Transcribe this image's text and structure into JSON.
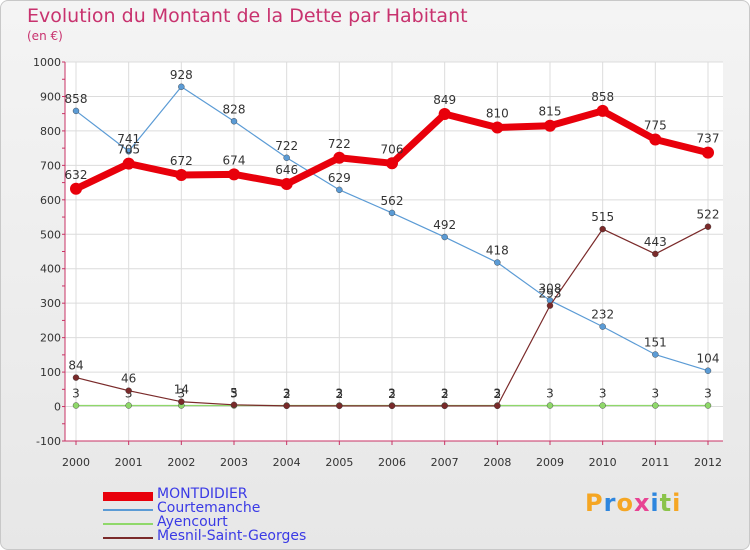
{
  "title": "Evolution du Montant de la Dette par Habitant",
  "subtitle": "(en €)",
  "logo": {
    "text": "Proxiti",
    "letter_colors": [
      "#f5a623",
      "#2e86de",
      "#f5a623",
      "#e84393",
      "#2e86de",
      "#8bc34a",
      "#f5a623"
    ]
  },
  "chart_data": {
    "type": "line",
    "x": [
      "2000",
      "2001",
      "2002",
      "2003",
      "2004",
      "2005",
      "2006",
      "2007",
      "2008",
      "2009",
      "2010",
      "2011",
      "2012"
    ],
    "ylim": [
      -100,
      1000
    ],
    "yticks": [
      -100,
      0,
      100,
      200,
      300,
      400,
      500,
      600,
      700,
      800,
      900,
      1000
    ],
    "grid": true,
    "legend_position": "bottom-left",
    "series": [
      {
        "name": "MONTDIDIER",
        "color": "#e8000b",
        "values": [
          632,
          705,
          672,
          674,
          646,
          722,
          706,
          849,
          810,
          815,
          858,
          775,
          737
        ],
        "labels": [
          "632",
          "705",
          "672",
          "674",
          "646",
          "722",
          "706",
          "849",
          "810",
          "815",
          "858",
          "775",
          "737"
        ]
      },
      {
        "name": "Courtemanche",
        "color": "#5b9bd5",
        "values": [
          858,
          741,
          928,
          828,
          722,
          629,
          562,
          492,
          418,
          308,
          232,
          151,
          104
        ],
        "labels": [
          "858",
          "741",
          "928",
          "828",
          "722",
          "629",
          "562",
          "492",
          "418",
          "308",
          "232",
          "151",
          "104"
        ]
      },
      {
        "name": "Ayencourt",
        "color": "#8fd86a",
        "values": [
          3,
          3,
          3,
          3,
          3,
          3,
          3,
          3,
          3,
          3,
          3,
          3,
          3
        ],
        "labels": [
          "3",
          "3",
          "3",
          "3",
          "3",
          "3",
          "3",
          "3",
          "3",
          "3",
          "3",
          "3",
          "3"
        ]
      },
      {
        "name": "Mesnil-Saint-Georges",
        "color": "#7a2a2a",
        "values": [
          84,
          46,
          14,
          5,
          2,
          2,
          2,
          2,
          2,
          293,
          515,
          443,
          522
        ],
        "labels": [
          "84",
          "46",
          "14",
          "5",
          "2",
          "2",
          "2",
          "2",
          "2",
          "293",
          "515",
          "443",
          "522"
        ]
      }
    ]
  }
}
